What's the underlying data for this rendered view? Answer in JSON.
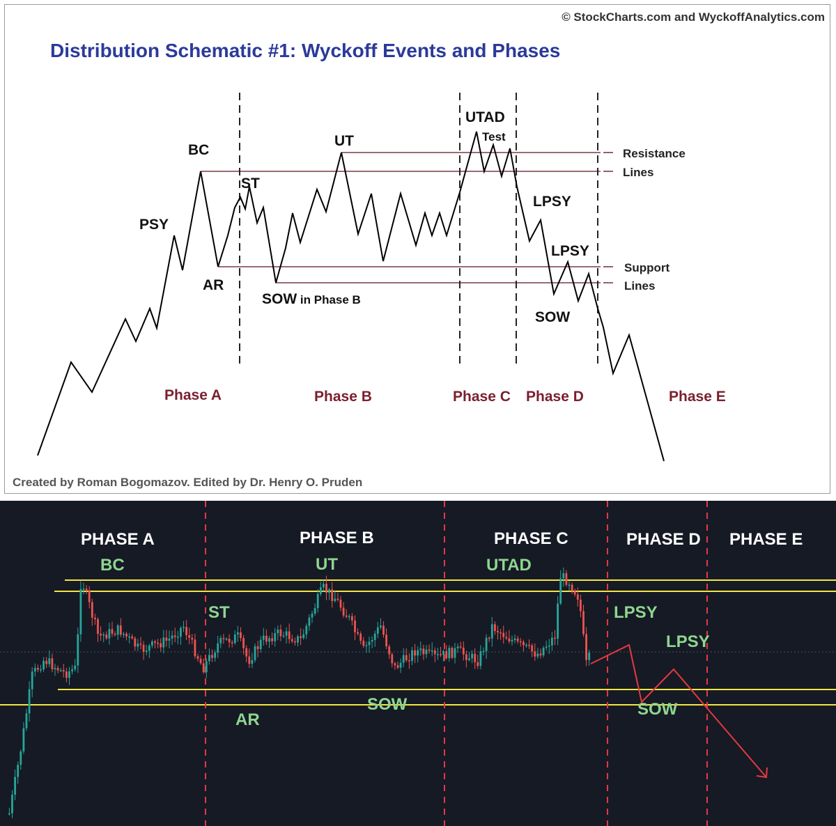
{
  "schematic": {
    "copyright": "© StockCharts.com and WyckoffAnalytics.com",
    "title": "Distribution Schematic #1: Wyckoff Events and Phases",
    "credit": "Created by Roman Bogomazov. Edited by Dr. Henry O. Pruden",
    "events": {
      "psy": "PSY",
      "bc": "BC",
      "ar": "AR",
      "st": "ST",
      "ut": "UT",
      "sow_phase_b_main": "SOW",
      "sow_phase_b_suffix": " in Phase B",
      "utad": "UTAD",
      "test": "Test",
      "lpsy1": "LPSY",
      "lpsy2": "LPSY",
      "sow": "SOW"
    },
    "line_labels": {
      "resistance_1": "Resistance",
      "resistance_2": "Lines",
      "support_1": "Support",
      "support_2": "Lines"
    },
    "phases": [
      "Phase A",
      "Phase B",
      "Phase C",
      "Phase D",
      "Phase E"
    ],
    "colors": {
      "title": "#2b3a9a",
      "phase": "#7a1f2e",
      "level_line": "#7a3a44",
      "price_line": "#000000"
    }
  },
  "price_chart": {
    "phases": [
      "PHASE A",
      "PHASE B",
      "PHASE C",
      "PHASE D",
      "PHASE E"
    ],
    "events": {
      "bc": "BC",
      "ut": "UT",
      "utad": "UTAD",
      "st": "ST",
      "ar": "AR",
      "sow1": "SOW",
      "lpsy1": "LPSY",
      "lpsy2": "LPSY",
      "sow2": "SOW"
    },
    "colors": {
      "background": "#161a25",
      "level_line": "#f5e642",
      "divider": "#e5393f",
      "bull": "#26a69a",
      "bear": "#ef5350",
      "event_label": "#8fd68f",
      "phase_label": "#ffffff",
      "projection": "#e5393f"
    }
  }
}
